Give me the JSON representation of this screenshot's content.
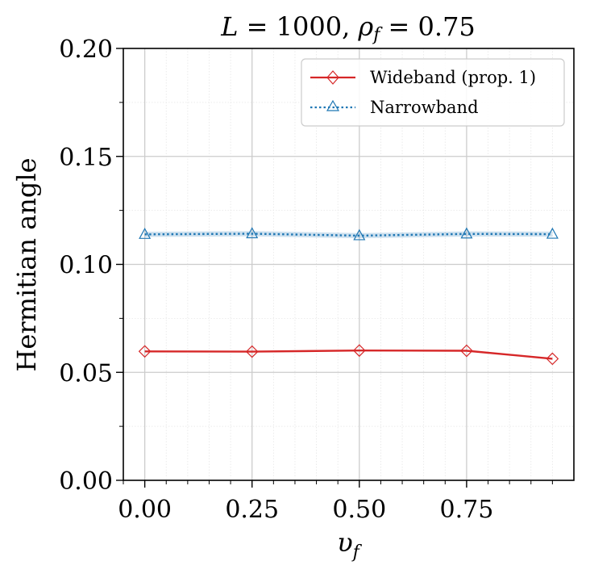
{
  "chart_data": {
    "type": "line",
    "title": "L = 1000, ρ_f = 0.75",
    "title_parts": {
      "lhs1": "L",
      "eq1": " = 1000, ",
      "lhs2": "ρ",
      "sub2": "f",
      "eq2": " = 0.75"
    },
    "xlabel": "υ",
    "xlabel_sub": "f",
    "ylabel": "Hermitian angle",
    "xlim": [
      -0.05,
      1.0
    ],
    "ylim": [
      0.0,
      0.2
    ],
    "xticks": [
      0.0,
      0.25,
      0.5,
      0.75
    ],
    "xtick_labels": [
      "0.00",
      "0.25",
      "0.50",
      "0.75"
    ],
    "yticks": [
      0.0,
      0.05,
      0.1,
      0.15,
      0.2
    ],
    "ytick_labels": [
      "0.00",
      "0.05",
      "0.10",
      "0.15",
      "0.20"
    ],
    "grid": true,
    "legend_position": "top-right",
    "x": [
      0.0,
      0.25,
      0.5,
      0.75,
      0.95
    ],
    "series": [
      {
        "name": "Wideband (prop. 1)",
        "values": [
          0.0597,
          0.0596,
          0.0601,
          0.06,
          0.0563
        ],
        "color": "#d62728",
        "marker": "diamond",
        "linestyle": "solid"
      },
      {
        "name": "Narrowband",
        "values": [
          0.1139,
          0.1142,
          0.1133,
          0.1141,
          0.114
        ],
        "band": 0.0012,
        "color": "#1f77b4",
        "marker": "triangle",
        "linestyle": "dotted"
      }
    ]
  }
}
